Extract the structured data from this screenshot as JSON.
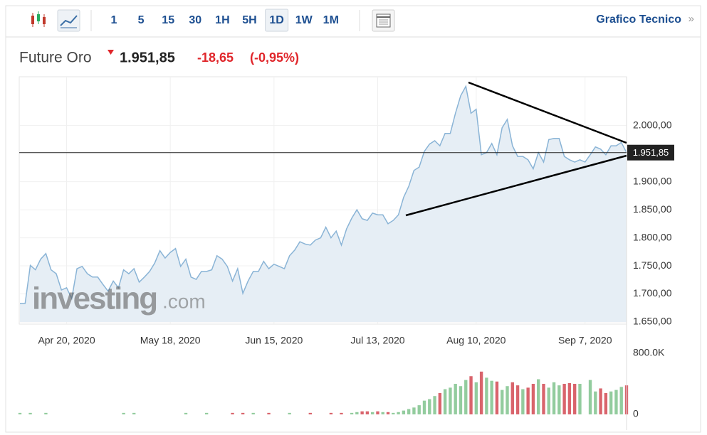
{
  "toolbar": {
    "intervals": [
      "1",
      "5",
      "15",
      "30",
      "1H",
      "5H",
      "1D",
      "1W",
      "1M"
    ],
    "active_interval": "1D",
    "link": "Grafico Tecnico"
  },
  "header": {
    "name": "Future Oro",
    "last": {
      "value": 1951.85,
      "label": "1.951,85"
    },
    "change": "-18,65",
    "change_pct": "(-0,95%)"
  },
  "watermark": [
    "investing",
    ".com"
  ],
  "chart_data": {
    "type": "area",
    "color": "#8ab4d6",
    "fill": "#e6eef5",
    "grid": true,
    "values": [
      1683,
      1683,
      1751,
      1743,
      1762,
      1772,
      1743,
      1736,
      1707,
      1711,
      1692,
      1745,
      1749,
      1736,
      1730,
      1730,
      1717,
      1705,
      1723,
      1711,
      1743,
      1736,
      1745,
      1721,
      1730,
      1740,
      1755,
      1777,
      1764,
      1774,
      1781,
      1749,
      1762,
      1730,
      1726,
      1740,
      1740,
      1743,
      1768,
      1762,
      1749,
      1723,
      1745,
      1701,
      1723,
      1740,
      1740,
      1758,
      1745,
      1753,
      1749,
      1745,
      1768,
      1778,
      1793,
      1789,
      1787,
      1796,
      1800,
      1819,
      1800,
      1812,
      1787,
      1816,
      1835,
      1850,
      1834,
      1831,
      1844,
      1841,
      1841,
      1825,
      1831,
      1841,
      1872,
      1892,
      1920,
      1926,
      1954,
      1967,
      1973,
      1964,
      1986,
      1986,
      2022,
      2053,
      2070,
      2022,
      2029,
      1948,
      1952,
      1968,
      1948,
      1996,
      2011,
      1964,
      1945,
      1945,
      1939,
      1923,
      1952,
      1935,
      1975,
      1977,
      1977,
      1945,
      1939,
      1935,
      1939,
      1935,
      1948,
      1962,
      1958,
      1948,
      1964,
      1964,
      1970,
      1951.85
    ],
    "xlim": [
      0,
      117
    ],
    "xticks": [
      {
        "value": 9,
        "label": "Apr 20, 2020"
      },
      {
        "value": 29,
        "label": "May 18, 2020"
      },
      {
        "value": 49,
        "label": "Jun 15, 2020"
      },
      {
        "value": 69,
        "label": "Jul 13, 2020"
      },
      {
        "value": 88,
        "label": "Aug 10, 2020"
      },
      {
        "value": 109,
        "label": "Sep 7, 2020"
      }
    ],
    "ylim": [
      1650,
      2087
    ],
    "yticks": [
      {
        "value": 1650,
        "label": "1.650,00"
      },
      {
        "value": 1700,
        "label": "1.700,00"
      },
      {
        "value": 1750,
        "label": "1.750,00"
      },
      {
        "value": 1800,
        "label": "1.800,00"
      },
      {
        "value": 1850,
        "label": "1.850,00"
      },
      {
        "value": 1900,
        "label": "1.900,00"
      },
      {
        "value": 2000,
        "label": "2.000,00"
      }
    ],
    "volume": {
      "up_color": "#93cc9e",
      "down_color": "#d9646c",
      "values": [
        20000,
        0,
        20000,
        0,
        0,
        20000,
        0,
        0,
        0,
        0,
        0,
        0,
        0,
        0,
        0,
        0,
        0,
        0,
        0,
        0,
        20000,
        0,
        20000,
        0,
        0,
        0,
        0,
        0,
        0,
        0,
        0,
        0,
        20000,
        0,
        0,
        0,
        20000,
        0,
        0,
        0,
        0,
        20000,
        0,
        20000,
        0,
        20000,
        0,
        0,
        20000,
        0,
        0,
        0,
        20000,
        0,
        0,
        0,
        20000,
        0,
        0,
        0,
        20000,
        0,
        20000,
        0,
        20000,
        30000,
        40000,
        40000,
        30000,
        40000,
        30000,
        30000,
        20000,
        30000,
        50000,
        70000,
        90000,
        120000,
        180000,
        200000,
        240000,
        280000,
        330000,
        350000,
        400000,
        370000,
        450000,
        500000,
        420000,
        560000,
        480000,
        440000,
        430000,
        320000,
        370000,
        420000,
        380000,
        330000,
        350000,
        400000,
        460000,
        400000,
        350000,
        420000,
        380000,
        400000,
        410000,
        400000,
        400000,
        0,
        450000,
        300000,
        340000,
        280000,
        300000,
        320000,
        360000,
        380000
      ],
      "ylim": [
        0,
        800000
      ],
      "yticks": [
        0,
        {
          "value": 800000,
          "label": "800.0K"
        }
      ]
    }
  }
}
